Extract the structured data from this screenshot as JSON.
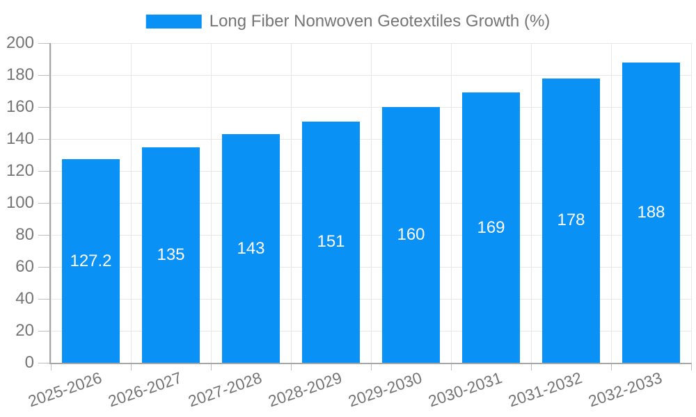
{
  "legend": {
    "label": "Long Fiber Nonwoven Geotextiles Growth (%)",
    "swatch_color": "#0a91f5"
  },
  "chart_data": {
    "type": "bar",
    "title": "",
    "series_name": "Long Fiber Nonwoven Geotextiles Growth (%)",
    "categories": [
      "2025-2026",
      "2026-2027",
      "2027-2028",
      "2028-2029",
      "2029-2030",
      "2030-2031",
      "2031-2032",
      "2032-2033"
    ],
    "values": [
      127.2,
      135,
      143,
      151,
      160,
      169,
      178,
      188
    ],
    "value_labels": [
      "127.2",
      "135",
      "143",
      "151",
      "160",
      "169",
      "178",
      "188"
    ],
    "xlabel": "",
    "ylabel": "",
    "ylim": [
      0,
      200
    ],
    "ytick_step": 20,
    "ytick_labels": [
      "0",
      "20",
      "40",
      "60",
      "80",
      "100",
      "120",
      "140",
      "160",
      "180",
      "200"
    ],
    "grid": true,
    "legend_position": "top-center",
    "x_label_rotation_deg": -19,
    "colors": {
      "bar": "#0a91f5",
      "bar_label": "#ffffff",
      "grid": "#e7e7e7",
      "tick": "#bdbdbd",
      "axis": "#a6a6a6",
      "tick_label": "#757575"
    }
  }
}
